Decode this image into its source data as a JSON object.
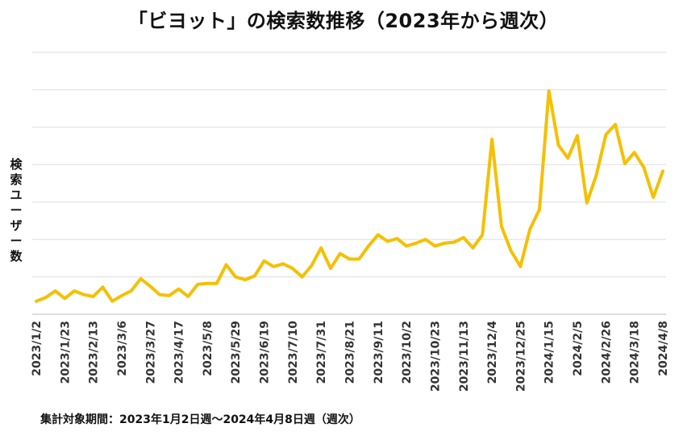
{
  "chart_data": {
    "type": "line",
    "title": "「ビヨット」の検索数推移（2023年から週次）",
    "ylabel": "検索ユーザー数",
    "xlabel": "",
    "footnote": "集計対象期間：2023年1月2日週〜2024年4月8日週（週次）",
    "line_color": "#F5C000",
    "grid": true,
    "ylim": [
      0,
      1400
    ],
    "tick_labels": [
      "2023/1/2",
      "2023/1/23",
      "2023/2/13",
      "2023/3/6",
      "2023/3/27",
      "2023/4/17",
      "2023/5/8",
      "2023/5/29",
      "2023/6/19",
      "2023/7/10",
      "2023/7/31",
      "2023/8/21",
      "2023/9/11",
      "2023/10/2",
      "2023/10/23",
      "2023/11/13",
      "2023/12/4",
      "2023/12/25",
      "2024/1/15",
      "2024/2/5",
      "2024/2/26",
      "2024/3/18",
      "2024/4/8"
    ],
    "values": [
      70,
      90,
      125,
      85,
      125,
      105,
      95,
      145,
      70,
      100,
      125,
      190,
      150,
      105,
      100,
      135,
      95,
      160,
      165,
      165,
      265,
      200,
      185,
      205,
      285,
      255,
      270,
      245,
      200,
      260,
      355,
      245,
      325,
      295,
      295,
      365,
      425,
      390,
      405,
      365,
      380,
      400,
      365,
      380,
      385,
      410,
      355,
      425,
      935,
      470,
      340,
      255,
      455,
      560,
      1195,
      905,
      835,
      955,
      595,
      745,
      960,
      1015,
      805,
      865,
      785,
      625,
      765
    ]
  }
}
